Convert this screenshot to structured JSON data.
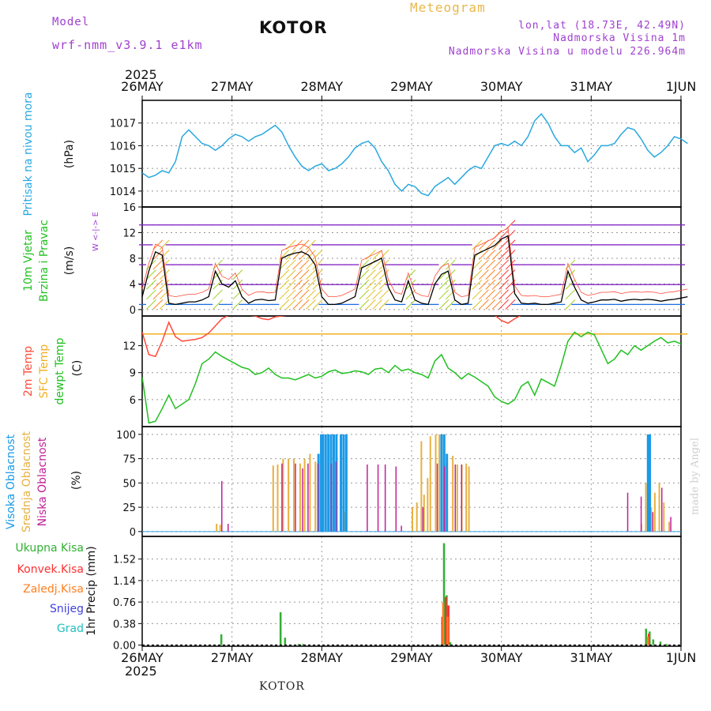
{
  "header": {
    "model_label": "Model",
    "model_name": "wrf-nmm_v3.9.1 e1km",
    "title": "KOTOR",
    "subtitle": "Meteogram",
    "coords": "lon,lat (18.73E, 42.49N)",
    "elevation": "Nadmorska Visina 1m",
    "model_elevation": "Nadmorska Visina u modelu 226.964m",
    "footer": "KOTOR",
    "watermark": "made by Angel"
  },
  "colors": {
    "pressure": "#29a8e0",
    "temp2m": "#ff4a3a",
    "sfc_temp": "#f0b020",
    "dewpt": "#20c020",
    "high_cloud": "#1a9ae8",
    "mid_cloud": "#e8b040",
    "low_cloud": "#c0209a",
    "total_precip": "#30b030",
    "conv_precip": "#ff3030",
    "strat_precip": "#ff8020",
    "snow": "#4040e0",
    "hail": "#20c0c0",
    "wind_dir_label": "#a040d0"
  },
  "chart_data": [
    {
      "type": "line",
      "name": "pressure",
      "ylabel_title": "Pritisak na nivou mora",
      "ylabel_unit": "(hPa)",
      "x_labels_top_year": "2025",
      "x_labels": [
        "26MAY",
        "27MAY",
        "28MAY",
        "29MAY",
        "30MAY",
        "31MAY",
        "1JUN"
      ],
      "yticks": [
        1014,
        1015,
        1016,
        1017
      ],
      "ylim": [
        1013.3,
        1018.0
      ],
      "values": [
        1014.8,
        1014.6,
        1014.7,
        1014.9,
        1014.8,
        1015.3,
        1016.4,
        1016.7,
        1016.4,
        1016.1,
        1016.0,
        1015.8,
        1016.0,
        1016.3,
        1016.5,
        1016.4,
        1016.2,
        1016.4,
        1016.5,
        1016.7,
        1016.9,
        1016.6,
        1016.0,
        1015.5,
        1015.1,
        1014.9,
        1015.1,
        1015.2,
        1014.9,
        1015.0,
        1015.2,
        1015.5,
        1015.9,
        1016.1,
        1016.2,
        1015.9,
        1015.3,
        1014.9,
        1014.3,
        1014.0,
        1014.3,
        1014.2,
        1013.9,
        1013.8,
        1014.2,
        1014.4,
        1014.6,
        1014.3,
        1014.6,
        1014.9,
        1015.1,
        1015.0,
        1015.5,
        1016.0,
        1016.1,
        1016.0,
        1016.2,
        1016.0,
        1016.4,
        1017.1,
        1017.4,
        1017.0,
        1016.4,
        1016.0,
        1016.0,
        1015.7,
        1015.9,
        1015.3,
        1015.6,
        1016.0,
        1016.0,
        1016.1,
        1016.5,
        1016.8,
        1016.7,
        1016.3,
        1015.8,
        1015.5,
        1015.7,
        1016.0,
        1016.4,
        1016.3,
        1016.1
      ]
    },
    {
      "type": "line",
      "name": "wind",
      "ylabel_title": "10m Vjetar",
      "ylabel_title2": "Brzina i Pravac",
      "ylabel_unit": "(m/s)",
      "compass": "W <-|-> E",
      "yticks": [
        0,
        4,
        8,
        12,
        16
      ],
      "ylim": [
        -1,
        16
      ],
      "series": [
        {
          "name": "speed",
          "values": [
            2.0,
            6.0,
            9.0,
            8.5,
            1.0,
            0.8,
            1.0,
            1.2,
            1.2,
            1.5,
            2.0,
            6.0,
            4.0,
            3.5,
            4.5,
            2.0,
            1.0,
            1.5,
            1.6,
            1.4,
            1.5,
            8.0,
            8.5,
            8.8,
            9.0,
            8.5,
            7.0,
            2.0,
            0.8,
            0.8,
            1.0,
            1.5,
            2.0,
            6.5,
            7.0,
            7.5,
            8.0,
            3.5,
            1.5,
            1.2,
            4.5,
            1.5,
            1.0,
            0.8,
            4.0,
            5.5,
            6.0,
            1.5,
            0.8,
            1.0,
            8.5,
            9.0,
            9.5,
            10.0,
            11.0,
            11.5,
            2.5,
            1.0,
            0.9,
            1.0,
            0.8,
            0.8,
            1.0,
            1.2,
            6.0,
            3.5,
            1.5,
            1.0,
            1.2,
            1.5,
            1.5,
            1.6,
            1.3,
            1.5,
            1.6,
            1.5,
            1.6,
            1.5,
            1.3,
            1.5,
            1.6,
            1.8,
            2.0
          ]
        }
      ]
    },
    {
      "type": "line",
      "name": "temperature",
      "ylabel_lines": [
        "2m Temp",
        "SFC Temp",
        "dewpt Temp"
      ],
      "ylabel_unit": "(C)",
      "yticks": [
        6,
        9,
        12
      ],
      "ylim": [
        3.0,
        15.3
      ],
      "series": [
        {
          "name": "2m Temp",
          "values": [
            13.5,
            11.0,
            10.8,
            12.5,
            14.6,
            13.0,
            12.5,
            12.6,
            12.7,
            12.9,
            13.4,
            14.2,
            15.0,
            15.4,
            15.4,
            15.4,
            15.4,
            15.3,
            15.0,
            14.9,
            15.2,
            15.3,
            15.4,
            15.4,
            15.4,
            15.4,
            15.4,
            15.4,
            15.4,
            15.4,
            15.4,
            15.4,
            15.4,
            15.4,
            15.4,
            15.4,
            15.4,
            15.4,
            15.4,
            15.4,
            15.4,
            15.4,
            15.4,
            15.4,
            15.4,
            15.4,
            15.4,
            15.4,
            15.4,
            15.4,
            15.4,
            15.4,
            15.4,
            15.4,
            14.8,
            14.5,
            15.0,
            15.4,
            15.4,
            15.4,
            15.4,
            15.4,
            15.4,
            15.4,
            15.4,
            15.4,
            15.4,
            15.4,
            15.4,
            15.4,
            15.4,
            15.4,
            15.4,
            15.4,
            15.4,
            15.4,
            15.4,
            15.4,
            15.4,
            15.4,
            15.4,
            15.4,
            15.4
          ]
        },
        {
          "name": "SFC Temp",
          "values": [
            13.3,
            13.3,
            13.3,
            13.3,
            13.3,
            13.3,
            13.3,
            13.3,
            13.3,
            13.3,
            13.3,
            13.3,
            13.3,
            13.3,
            13.3,
            13.3,
            13.3,
            13.3,
            13.3,
            13.3,
            13.3,
            13.3,
            13.3,
            13.3,
            13.3,
            13.3,
            13.3,
            13.3,
            13.3,
            13.3,
            13.3,
            13.3,
            13.3,
            13.3,
            13.3,
            13.3,
            13.3,
            13.3,
            13.3,
            13.3,
            13.3,
            13.3,
            13.3,
            13.3,
            13.3,
            13.3,
            13.3,
            13.3,
            13.3,
            13.3,
            13.3,
            13.3,
            13.3,
            13.3,
            13.3,
            13.3,
            13.3,
            13.3,
            13.3,
            13.3,
            13.3,
            13.3,
            13.3,
            13.3,
            13.3,
            13.3,
            13.3,
            13.3,
            13.3,
            13.3,
            13.3,
            13.3,
            13.3,
            13.3,
            13.3,
            13.3,
            13.3,
            13.3,
            13.3,
            13.3,
            13.3,
            13.3,
            13.3
          ]
        },
        {
          "name": "dewpt Temp",
          "values": [
            8.5,
            3.4,
            3.6,
            5.0,
            6.5,
            5.0,
            5.5,
            6.0,
            7.8,
            10.0,
            10.5,
            11.3,
            10.8,
            10.4,
            10.0,
            9.6,
            9.4,
            8.8,
            9.0,
            9.5,
            8.8,
            8.4,
            8.4,
            8.2,
            8.5,
            8.8,
            8.4,
            8.6,
            9.1,
            9.3,
            8.9,
            9.0,
            9.2,
            9.1,
            8.8,
            9.4,
            9.5,
            9.0,
            9.8,
            9.2,
            9.4,
            9.0,
            8.8,
            8.4,
            10.3,
            11.0,
            9.5,
            9.0,
            8.3,
            8.9,
            8.5,
            8.0,
            7.5,
            6.3,
            5.8,
            5.5,
            6.0,
            7.5,
            8.0,
            6.5,
            8.3,
            7.9,
            7.5,
            9.8,
            12.5,
            13.5,
            13.0,
            13.5,
            13.2,
            11.6,
            10.0,
            10.5,
            11.5,
            11.0,
            12.0,
            11.5,
            12.0,
            12.5,
            12.9,
            12.3,
            12.5,
            12.2,
            11.5
          ]
        }
      ]
    },
    {
      "type": "bar",
      "name": "cloudiness",
      "ylabel_lines": [
        "Visoka Oblacnost",
        "Srednja Oblacnost",
        "Niska Oblacnost"
      ],
      "ylabel_unit": "(%)",
      "yticks": [
        0,
        25,
        50,
        75,
        100
      ],
      "ylim": [
        -5,
        108
      ],
      "series": [
        {
          "name": "Visoka Oblacnost",
          "points": [
            [
              1.95,
              80
            ],
            [
              1.98,
              100
            ],
            [
              2.0,
              100
            ],
            [
              2.03,
              100
            ],
            [
              2.06,
              100
            ],
            [
              2.09,
              100
            ],
            [
              2.12,
              100
            ],
            [
              2.15,
              100
            ],
            [
              2.2,
              100
            ],
            [
              2.23,
              100
            ],
            [
              2.26,
              100
            ],
            [
              3.32,
              100
            ],
            [
              3.35,
              100
            ],
            [
              3.38,
              80
            ],
            [
              5.62,
              100
            ],
            [
              5.64,
              100
            ]
          ]
        },
        {
          "name": "Srednja Oblacnost",
          "points": [
            [
              0.82,
              8
            ],
            [
              0.86,
              7
            ],
            [
              1.45,
              68
            ],
            [
              1.5,
              69
            ],
            [
              1.56,
              75
            ],
            [
              1.62,
              75
            ],
            [
              1.68,
              75
            ],
            [
              1.75,
              70
            ],
            [
              1.8,
              75
            ],
            [
              1.86,
              80
            ],
            [
              1.92,
              72
            ],
            [
              2.25,
              20
            ],
            [
              3.0,
              25
            ],
            [
              3.05,
              30
            ],
            [
              3.1,
              93
            ],
            [
              3.13,
              38
            ],
            [
              3.17,
              55
            ],
            [
              3.2,
              98
            ],
            [
              3.26,
              100
            ],
            [
              3.3,
              100
            ],
            [
              3.35,
              100
            ],
            [
              3.38,
              70
            ],
            [
              3.45,
              78
            ],
            [
              3.5,
              69
            ],
            [
              3.55,
              69
            ],
            [
              3.6,
              70
            ],
            [
              3.63,
              67
            ],
            [
              5.55,
              8
            ],
            [
              5.6,
              50
            ],
            [
              5.63,
              65
            ],
            [
              5.66,
              25
            ],
            [
              5.7,
              40
            ],
            [
              5.75,
              50
            ],
            [
              5.8,
              30
            ],
            [
              5.86,
              10
            ]
          ]
        },
        {
          "name": "Niska Oblacnost",
          "points": [
            [
              0.88,
              52
            ],
            [
              0.95,
              8
            ],
            [
              1.55,
              70
            ],
            [
              1.7,
              70
            ],
            [
              1.78,
              65
            ],
            [
              1.84,
              70
            ],
            [
              1.95,
              70
            ],
            [
              2.1,
              70
            ],
            [
              2.15,
              72
            ],
            [
              2.5,
              69
            ],
            [
              2.62,
              69
            ],
            [
              2.7,
              69
            ],
            [
              2.82,
              67
            ],
            [
              2.88,
              6
            ],
            [
              3.12,
              25
            ],
            [
              3.28,
              70
            ],
            [
              3.36,
              67
            ],
            [
              3.48,
              69
            ],
            [
              3.55,
              69
            ],
            [
              5.4,
              40
            ],
            [
              5.55,
              36
            ],
            [
              5.68,
              20
            ],
            [
              5.78,
              45
            ],
            [
              5.88,
              15
            ]
          ]
        }
      ]
    },
    {
      "type": "bar",
      "name": "precipitation",
      "ylabel_unit": "1hr Precip (mm)",
      "legend": [
        "Ukupna Kisa",
        "Konvek.Kisa",
        "Zaledj.Kisa",
        "Snijeg",
        "Grad"
      ],
      "yticks": [
        0,
        0.38,
        0.76,
        1.14,
        1.52
      ],
      "ylim": [
        -0.02,
        1.92
      ],
      "series": [
        {
          "name": "Ukupna Kisa",
          "points": [
            [
              0.87,
              0.19
            ],
            [
              1.53,
              0.58
            ],
            [
              1.58,
              0.13
            ],
            [
              1.73,
              0.02
            ],
            [
              1.78,
              0.02
            ],
            [
              3.3,
              0.01
            ],
            [
              3.35,
              1.8
            ],
            [
              3.38,
              0.88
            ],
            [
              3.42,
              0.05
            ],
            [
              5.6,
              0.29
            ],
            [
              5.64,
              0.24
            ],
            [
              5.68,
              0.1
            ],
            [
              5.76,
              0.06
            ],
            [
              5.83,
              0.02
            ]
          ]
        },
        {
          "name": "Konvek.Kisa",
          "points": [
            [
              3.33,
              0.5
            ],
            [
              3.37,
              0.85
            ],
            [
              3.4,
              0.7
            ],
            [
              5.63,
              0.2
            ]
          ]
        },
        {
          "name": "Zaledj.Kisa",
          "points": [
            [
              3.34,
              0.75
            ],
            [
              3.39,
              0.5
            ],
            [
              5.62,
              0.15
            ]
          ]
        }
      ]
    }
  ]
}
